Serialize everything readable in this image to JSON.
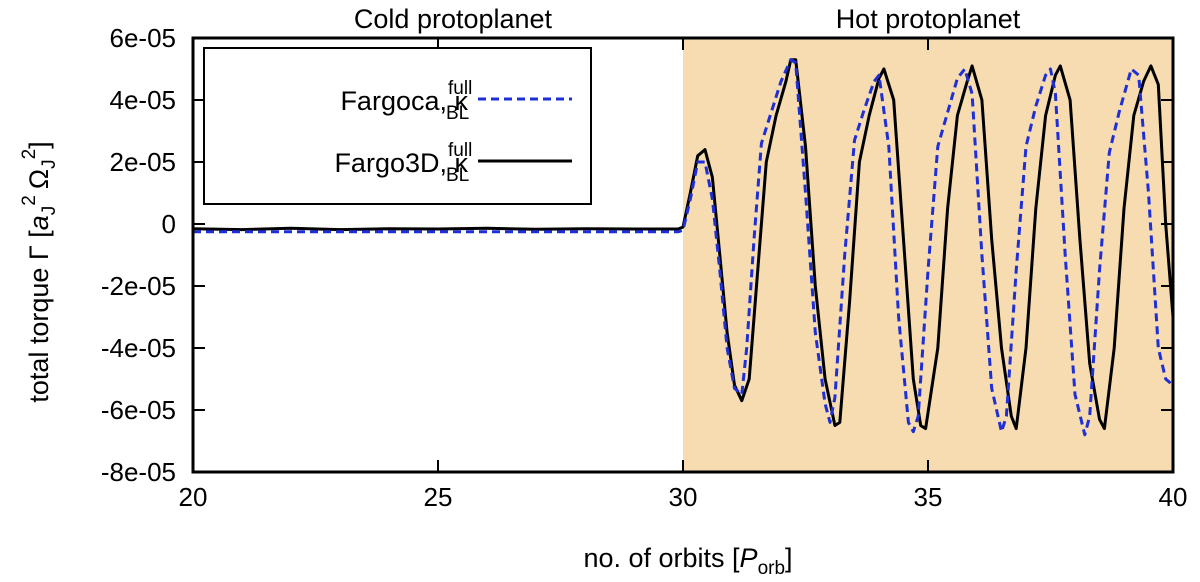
{
  "chart_data": {
    "type": "line",
    "xlabel": {
      "prefix": "no. of orbits [",
      "symbol": "P",
      "subscript": "orb",
      "suffix": "]"
    },
    "ylabel": {
      "text": "total torque Γ [",
      "a": "a",
      "aSub": "J",
      "aSup": "2",
      "omega": "Ω",
      "omegaSub": "J",
      "omegaSup": "2",
      "close": "]"
    },
    "xlim": [
      20,
      40
    ],
    "ylim": [
      -8e-05,
      6e-05
    ],
    "xticks": [
      20,
      25,
      30,
      35,
      40
    ],
    "xtick_labels": [
      "20",
      "25",
      "30",
      "35",
      "40"
    ],
    "yticks": [
      -8e-05,
      -6e-05,
      -4e-05,
      -2e-05,
      0,
      2e-05,
      4e-05,
      6e-05
    ],
    "ytick_labels": [
      "-8e-05",
      "-6e-05",
      "-4e-05",
      "-2e-05",
      "0",
      "2e-05",
      "4e-05",
      "6e-05"
    ],
    "regions": [
      {
        "label": "Cold protoplanet",
        "x_range": [
          20,
          30
        ],
        "color": "#ffffff"
      },
      {
        "label": "Hot protoplanet",
        "x_range": [
          30,
          40
        ],
        "color": "#f6dcb0"
      }
    ],
    "legend": {
      "position": "top-left"
    },
    "series": [
      {
        "name": "Fargoca",
        "label_text": "Fargoca, κ",
        "label_sup": "full",
        "label_sub": "BL",
        "color": "#1f2fd6",
        "style": "dashed",
        "x": [
          20,
          25,
          29.9,
          30.0,
          30.15,
          30.3,
          30.45,
          30.6,
          30.75,
          30.9,
          31.05,
          31.2,
          31.3,
          31.45,
          31.6,
          31.8,
          32.0,
          32.2,
          32.3,
          32.5,
          32.7,
          32.9,
          33.0,
          33.1,
          33.3,
          33.5,
          33.7,
          33.9,
          34.0,
          34.2,
          34.4,
          34.6,
          34.7,
          34.8,
          35.0,
          35.2,
          35.4,
          35.6,
          35.75,
          35.9,
          36.1,
          36.3,
          36.5,
          36.6,
          36.8,
          37.0,
          37.2,
          37.4,
          37.5,
          37.6,
          37.8,
          38.0,
          38.2,
          38.3,
          38.5,
          38.7,
          38.9,
          39.15,
          39.3,
          39.5,
          39.7,
          39.85,
          40.0
        ],
        "y": [
          -2.5e-06,
          -2.5e-06,
          -2.5e-06,
          -2e-06,
          8e-06,
          2e-05,
          2e-05,
          8e-06,
          -1.5e-05,
          -4e-05,
          -5.3e-05,
          -5.5e-05,
          -4e-05,
          -5e-06,
          2.6e-05,
          3.6e-05,
          4.6e-05,
          5.3e-05,
          5.2e-05,
          1e-05,
          -3.5e-05,
          -5.8e-05,
          -6.4e-05,
          -5.6e-05,
          -1e-05,
          2.7e-05,
          3.7e-05,
          4.6e-05,
          4.8e-05,
          2.5e-05,
          -3e-05,
          -6.4e-05,
          -6.7e-05,
          -6.2e-05,
          -1.5e-05,
          2.5e-05,
          3.6e-05,
          4.7e-05,
          5e-05,
          4.2e-05,
          -1e-05,
          -5.3e-05,
          -6.7e-05,
          -6.2e-05,
          -1.5e-05,
          2.5e-05,
          3.8e-05,
          4.8e-05,
          5e-05,
          4.2e-05,
          -1e-05,
          -5.5e-05,
          -6.8e-05,
          -6.2e-05,
          -1.5e-05,
          2.3e-05,
          3.6e-05,
          5e-05,
          4.8e-05,
          1e-05,
          -4e-05,
          -5e-05,
          -5.2e-05
        ]
      },
      {
        "name": "Fargo3D",
        "label_text": "Fargo3D, κ",
        "label_sup": "full",
        "label_sub": "BL",
        "color": "#000000",
        "style": "solid",
        "x": [
          20,
          21,
          22,
          23,
          24,
          25,
          26,
          27,
          28,
          29,
          29.9,
          30.0,
          30.15,
          30.3,
          30.45,
          30.6,
          30.75,
          30.9,
          31.05,
          31.2,
          31.35,
          31.5,
          31.7,
          31.9,
          32.1,
          32.2,
          32.3,
          32.5,
          32.7,
          32.9,
          33.1,
          33.2,
          33.4,
          33.6,
          33.8,
          34.0,
          34.1,
          34.3,
          34.5,
          34.7,
          34.85,
          34.95,
          35.2,
          35.4,
          35.6,
          35.8,
          35.9,
          36.1,
          36.3,
          36.5,
          36.7,
          36.8,
          37.0,
          37.2,
          37.4,
          37.6,
          37.7,
          37.9,
          38.1,
          38.3,
          38.5,
          38.6,
          38.8,
          39.0,
          39.2,
          39.4,
          39.55,
          39.7,
          39.85,
          40.0
        ],
        "y": [
          -1.5e-06,
          -1.8e-06,
          -1.4e-06,
          -1.8e-06,
          -1.5e-06,
          -1.6e-06,
          -1.4e-06,
          -1.7e-06,
          -1.5e-06,
          -1.6e-06,
          -1.6e-06,
          -1e-06,
          1e-05,
          2.2e-05,
          2.4e-05,
          1.5e-05,
          -1e-05,
          -3.5e-05,
          -5.2e-05,
          -5.7e-05,
          -5e-05,
          -2e-05,
          2e-05,
          3.5e-05,
          4.6e-05,
          5.3e-05,
          5.3e-05,
          2.5e-05,
          -2e-05,
          -5e-05,
          -6.5e-05,
          -6.4e-05,
          -2.5e-05,
          2e-05,
          3.5e-05,
          4.7e-05,
          5e-05,
          4e-05,
          -5e-06,
          -5e-05,
          -6.5e-05,
          -6.6e-05,
          -4e-05,
          5e-06,
          3.5e-05,
          4.6e-05,
          5.1e-05,
          4e-05,
          -5e-06,
          -4e-05,
          -6.2e-05,
          -6.6e-05,
          -4e-05,
          5e-06,
          3.5e-05,
          4.8e-05,
          5.1e-05,
          4e-05,
          -5e-06,
          -4.5e-05,
          -6.3e-05,
          -6.6e-05,
          -4e-05,
          5e-06,
          3.5e-05,
          4.6e-05,
          5.1e-05,
          4.5e-05,
          0,
          -3e-05
        ]
      }
    ]
  }
}
